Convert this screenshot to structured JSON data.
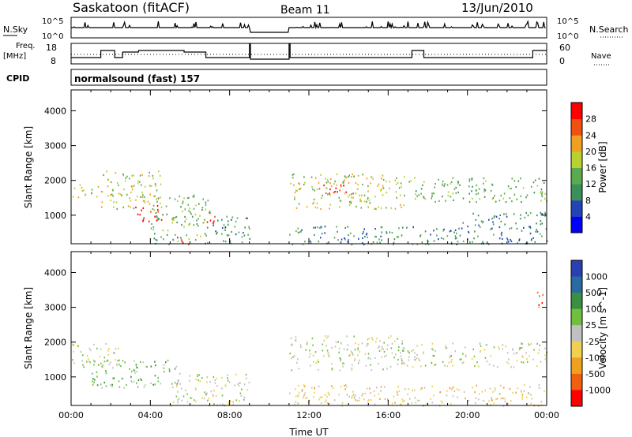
{
  "header": {
    "station": "Saskatoon (fitACF)",
    "beam": "Beam 11",
    "date": "13/Jun/2010"
  },
  "strips": {
    "nsky_label": "N.Sky",
    "nsky_ticks": [
      "10^5",
      "10^0"
    ],
    "nsearch_label": "N.Search",
    "nsearch_ticks": [
      "10^5",
      "10^0"
    ],
    "freq_label": "Freq.",
    "freq_unit": "[MHz]",
    "freq_ticks": [
      "18",
      "8"
    ],
    "nave_label": "Nave",
    "nave_ticks": [
      "60",
      "0"
    ],
    "cpid_label": "CPID",
    "cpid_text": "normalsound (fast) 157"
  },
  "colors": {
    "power_scale": [
      "#0000ff",
      "#2244b8",
      "#3a8f5a",
      "#5aaa50",
      "#b8d030",
      "#f0a020",
      "#f05010",
      "#ff0000"
    ],
    "velocity_scale": [
      "#2a40b0",
      "#2a6aa0",
      "#3a9040",
      "#70c040",
      "#c0c0c0",
      "#f0d050",
      "#f0a020",
      "#f06010",
      "#ff0000"
    ],
    "ground_scatter": "#b8b8b8"
  },
  "chart_data": [
    {
      "type": "heatmap",
      "title": "Power",
      "ylabel": "Slant Range [km]",
      "ylim": [
        180,
        4600
      ],
      "yticks": [
        "1000",
        "2000",
        "3000",
        "4000"
      ],
      "xlim": [
        0,
        24
      ],
      "colorbar_label": "Power [dB]",
      "colorbar_ticks": [
        "4",
        "8",
        "12",
        "16",
        "20",
        "24",
        "28"
      ],
      "data_gap_hours": [
        9.0,
        11.0
      ],
      "echo_regions": [
        {
          "t0": 0.0,
          "t1": 1.6,
          "r0": 1500,
          "r1": 1900,
          "level": 4
        },
        {
          "t0": 1.5,
          "t1": 4.5,
          "r0": 1200,
          "r1": 2300,
          "level": 4
        },
        {
          "t0": 3.2,
          "t1": 4.6,
          "r0": 800,
          "r1": 1300,
          "level": 7
        },
        {
          "t0": 4.0,
          "t1": 7.0,
          "r0": 180,
          "r1": 1600,
          "level": 3
        },
        {
          "t0": 5.3,
          "t1": 6.0,
          "r0": 180,
          "r1": 400,
          "level": 7
        },
        {
          "t0": 6.8,
          "t1": 7.3,
          "r0": 650,
          "r1": 1100,
          "level": 7
        },
        {
          "t0": 7.0,
          "t1": 9.0,
          "r0": 180,
          "r1": 1000,
          "level": 2
        },
        {
          "t0": 11.0,
          "t1": 24.0,
          "r0": 180,
          "r1": 700,
          "level": 2
        },
        {
          "t0": 11.0,
          "t1": 17.0,
          "r0": 1200,
          "r1": 2200,
          "level": 4
        },
        {
          "t0": 12.5,
          "t1": 14.5,
          "r0": 1600,
          "r1": 1900,
          "level": 7
        },
        {
          "t0": 17.0,
          "t1": 24.0,
          "r0": 1400,
          "r1": 2100,
          "level": 3
        },
        {
          "t0": 19.5,
          "t1": 24.0,
          "r0": 700,
          "r1": 1100,
          "level": 2
        }
      ]
    },
    {
      "type": "heatmap",
      "title": "Velocity",
      "ylabel": "Slant Range [km]",
      "ylim": [
        180,
        4600
      ],
      "yticks": [
        "1000",
        "2000",
        "3000",
        "4000"
      ],
      "xlabel": "Time UT",
      "xticks": [
        "00:00",
        "04:00",
        "08:00",
        "12:00",
        "16:00",
        "20:00",
        "00:00"
      ],
      "xlim": [
        0,
        24
      ],
      "colorbar_label": "Velocity [m s^-1]",
      "colorbar_ticks": [
        "1000",
        "500",
        "100",
        "25",
        "-25",
        "-100",
        "-500",
        "-1000"
      ],
      "data_gap_hours": [
        9.0,
        11.0
      ],
      "echo_regions": [
        {
          "t0": 0.0,
          "t1": 2.5,
          "r0": 1300,
          "r1": 2000,
          "level": 4
        },
        {
          "t0": 1.0,
          "t1": 5.5,
          "r0": 700,
          "r1": 1500,
          "level": 3
        },
        {
          "t0": 5.0,
          "t1": 9.0,
          "r0": 180,
          "r1": 1100,
          "level": 4
        },
        {
          "t0": 11.0,
          "t1": 24.0,
          "r0": 180,
          "r1": 800,
          "level": 5
        },
        {
          "t0": 11.0,
          "t1": 17.0,
          "r0": 1200,
          "r1": 2200,
          "level": 4
        },
        {
          "t0": 17.0,
          "t1": 24.0,
          "r0": 1300,
          "r1": 2000,
          "level": 4
        },
        {
          "t0": 23.5,
          "t1": 24.0,
          "r0": 3000,
          "r1": 3500,
          "level": 7
        }
      ]
    }
  ]
}
